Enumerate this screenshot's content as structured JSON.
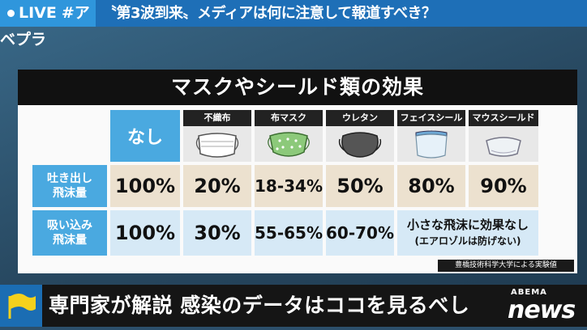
{
  "top_banner": {
    "live_label": "LIVE",
    "hashtag": "#アベプラ",
    "headline": "〝第3波到来〟メディアは何に注意して報道すべき？"
  },
  "panel": {
    "title": "マスクやシールド類の効果",
    "none_header": "なし",
    "columns": [
      {
        "label": "不織布",
        "icon": "nonwoven-mask-icon"
      },
      {
        "label": "布マスク",
        "icon": "cloth-mask-icon"
      },
      {
        "label": "ウレタン",
        "icon": "urethane-mask-icon"
      },
      {
        "label": "フェイスシールド",
        "icon": "face-shield-icon"
      },
      {
        "label": "マウスシールド",
        "icon": "mouth-shield-icon"
      }
    ],
    "rows": [
      {
        "label_line1": "吐き出し",
        "label_line2": "飛沫量",
        "values": [
          "100%",
          "20%",
          "18-34%",
          "50%",
          "80%",
          "90%"
        ]
      },
      {
        "label_line1": "吸い込み",
        "label_line2": "飛沫量",
        "values": [
          "100%",
          "30%",
          "55-65%",
          "60-70%"
        ],
        "note_line1": "小さな飛沫に効果なし",
        "note_line2": "(エアロゾルは防げない)"
      }
    ],
    "source": "豊橋技術科学大学による実験値"
  },
  "bottom_bar": {
    "text": "専門家が解説 感染のデータはココを見るべし",
    "logo_small": "ABEMA",
    "logo_big": "news"
  },
  "colors": {
    "accent_blue": "#4aa9e0",
    "row1_bg": "#ece1cf",
    "row2_bg": "#d6e9f6",
    "banner_blue": "#1e6fb7"
  }
}
